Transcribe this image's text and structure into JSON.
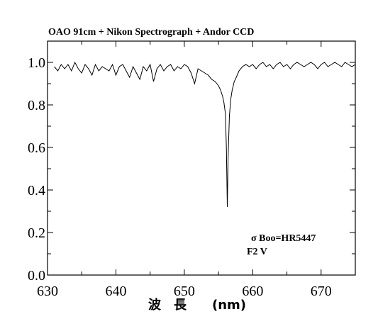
{
  "chart_data": {
    "type": "line",
    "title": "OAO 91cm + Nikon Spectrograph + Andor CCD",
    "xlabel": "波　長　　(nm)",
    "ylabel": "",
    "xlim": [
      630,
      675
    ],
    "ylim": [
      0.0,
      1.1
    ],
    "x_ticks": [
      630,
      640,
      650,
      660,
      670
    ],
    "y_ticks": [
      0.0,
      0.2,
      0.4,
      0.6,
      0.8,
      1.0
    ],
    "y_tick_labels": [
      "0.0",
      "0.2",
      "0.4",
      "0.6",
      "0.8",
      "1.0"
    ],
    "grid": false,
    "annotations": [
      "σ Boo=HR5447",
      "F2 V"
    ],
    "series": [
      {
        "color": "#000000",
        "x": [
          631.0,
          631.5,
          632.0,
          632.5,
          633.0,
          633.5,
          634.0,
          634.5,
          635.0,
          635.5,
          636.0,
          636.5,
          637.0,
          637.5,
          638.0,
          638.5,
          639.0,
          639.5,
          640.0,
          640.5,
          641.0,
          641.5,
          642.0,
          642.5,
          643.0,
          643.5,
          644.0,
          644.5,
          645.0,
          645.5,
          646.0,
          646.5,
          647.0,
          647.5,
          648.0,
          648.5,
          649.0,
          649.5,
          650.0,
          650.5,
          651.0,
          651.5,
          652.0,
          652.5,
          653.0,
          653.5,
          654.0,
          654.5,
          655.0,
          655.3,
          655.6,
          655.8,
          656.0,
          656.15,
          656.28,
          656.4,
          656.6,
          656.8,
          657.0,
          657.3,
          657.6,
          658.0,
          658.5,
          659.0,
          659.5,
          660.0,
          660.5,
          661.0,
          661.5,
          662.0,
          662.5,
          663.0,
          663.5,
          664.0,
          664.5,
          665.0,
          665.5,
          666.0,
          666.5,
          667.0,
          667.5,
          668.0,
          668.5,
          669.0,
          669.5,
          670.0,
          670.5,
          671.0,
          671.5,
          672.0,
          672.5,
          673.0,
          673.5,
          674.0,
          674.5,
          675.0
        ],
        "y": [
          0.98,
          0.96,
          0.99,
          0.97,
          0.99,
          0.96,
          1.0,
          0.97,
          0.95,
          0.99,
          0.97,
          0.94,
          0.99,
          0.96,
          0.98,
          0.97,
          0.96,
          0.99,
          0.94,
          0.98,
          0.99,
          0.96,
          0.93,
          0.98,
          0.95,
          0.92,
          0.98,
          0.96,
          0.99,
          0.91,
          0.97,
          0.99,
          0.96,
          0.98,
          0.99,
          0.96,
          0.98,
          0.97,
          0.99,
          0.98,
          0.95,
          0.9,
          0.97,
          0.96,
          0.95,
          0.94,
          0.92,
          0.91,
          0.89,
          0.87,
          0.84,
          0.81,
          0.76,
          0.6,
          0.32,
          0.55,
          0.75,
          0.83,
          0.87,
          0.91,
          0.93,
          0.96,
          0.98,
          0.99,
          0.98,
          0.99,
          0.97,
          0.99,
          1.0,
          0.98,
          0.99,
          0.97,
          0.99,
          1.0,
          0.98,
          0.99,
          0.97,
          0.99,
          1.0,
          0.99,
          0.98,
          0.99,
          1.0,
          0.99,
          0.97,
          0.99,
          1.0,
          0.98,
          0.99,
          1.0,
          0.99,
          0.98,
          1.0,
          0.99,
          0.98,
          0.99
        ]
      }
    ]
  }
}
